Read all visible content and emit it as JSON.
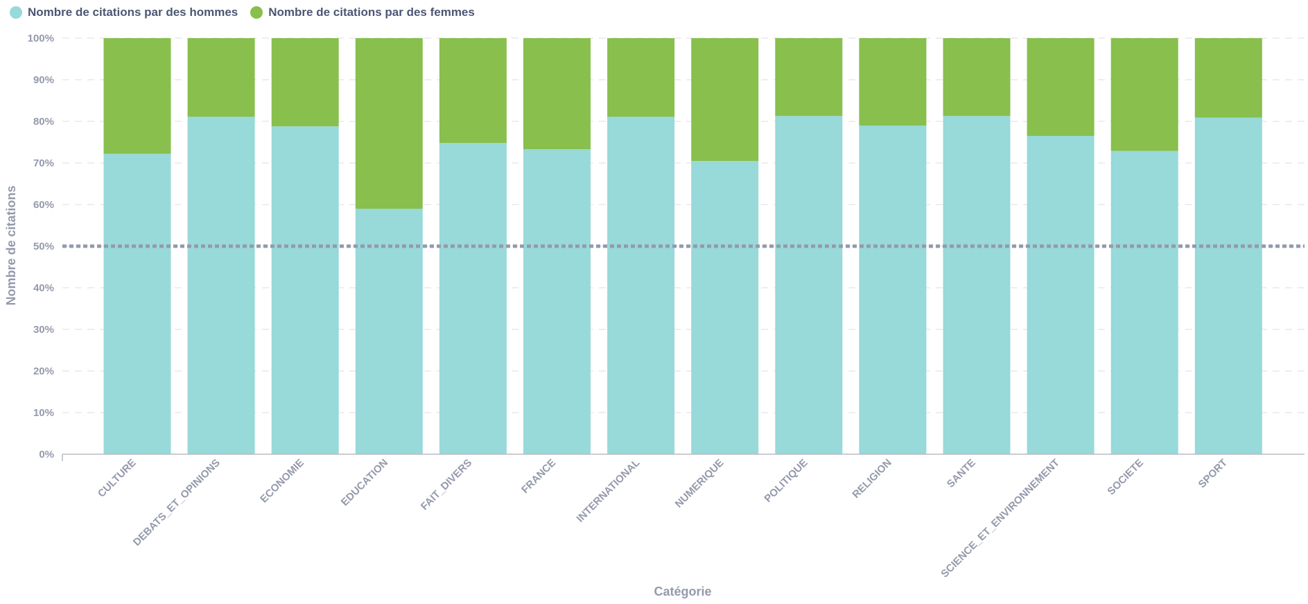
{
  "legend": {
    "items": [
      {
        "label": "Nombre de citations par des hommes",
        "color": "#98d9d9",
        "icon": "circle-icon"
      },
      {
        "label": "Nombre de citations par des femmes",
        "color": "#88bf4d",
        "icon": "circle-icon"
      }
    ]
  },
  "colors": {
    "men": "#98d9d9",
    "women": "#88bf4d",
    "goal_line": "#949aab",
    "grid": "#e8e9ed",
    "axis": "#b8bbc3"
  },
  "chart_data": {
    "type": "bar",
    "stacked": "normalized",
    "xlabel": "Catégorie",
    "ylabel": "Nombre de citations",
    "ylim": [
      0,
      100
    ],
    "y_ticks": [
      "0%",
      "10%",
      "20%",
      "30%",
      "40%",
      "50%",
      "60%",
      "70%",
      "80%",
      "90%",
      "100%"
    ],
    "grid": true,
    "goal_line": 50,
    "legend_position": "top-left",
    "categories": [
      "CULTURE",
      "DEBATS_ET_OPINIONS",
      "ECONOMIE",
      "EDUCATION",
      "FAIT_DIVERS",
      "FRANCE",
      "INTERNATIONAL",
      "NUMERIQUE",
      "POLITIQUE",
      "RELIGION",
      "SANTE",
      "SCIENCE_ET_ENVIRONNEMENT",
      "SOCIETE",
      "SPORT"
    ],
    "series": [
      {
        "name": "Nombre de citations par des hommes",
        "values": [
          72.2,
          81.1,
          78.8,
          59.0,
          74.8,
          73.3,
          81.1,
          70.5,
          81.3,
          79.0,
          81.3,
          76.5,
          72.9,
          80.9
        ]
      },
      {
        "name": "Nombre de citations par des femmes",
        "values": [
          27.8,
          18.9,
          21.2,
          41.0,
          25.2,
          26.7,
          18.9,
          29.5,
          18.7,
          21.0,
          18.7,
          23.5,
          27.1,
          19.1
        ]
      }
    ]
  }
}
